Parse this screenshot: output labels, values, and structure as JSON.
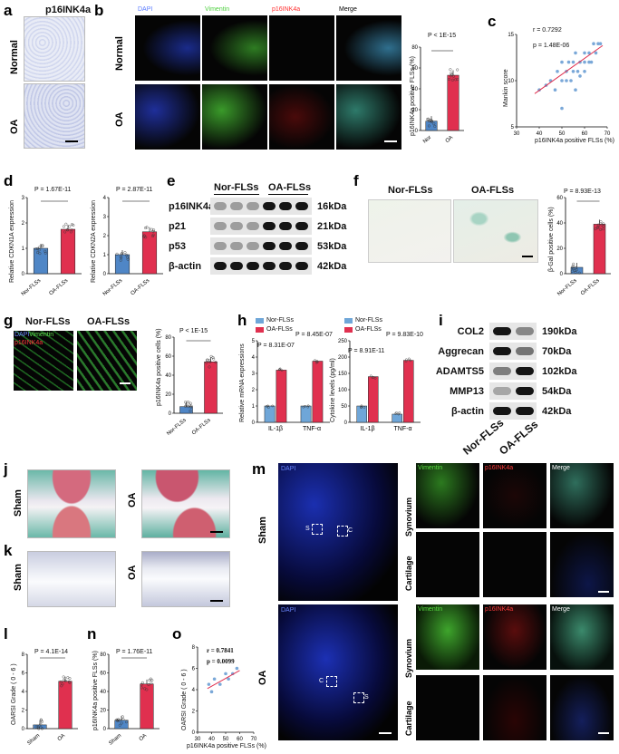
{
  "panels": {
    "a": {
      "label": "a",
      "title": "p16INK4a",
      "rows": [
        "Normal",
        "OA"
      ]
    },
    "b": {
      "label": "b",
      "channels": [
        "DAPI",
        "Vimentin",
        "p16INK4a",
        "Merge"
      ],
      "rows": [
        "Normal",
        "OA"
      ],
      "chart_title_p": "P < 1E-15",
      "ylabel": "p16INK4a positive FLSs (%)",
      "categories": [
        "Nor",
        "OA"
      ]
    },
    "c": {
      "label": "c",
      "r": "r  = 0.7292",
      "p": "p = 1.48E-06",
      "ylabel": "Mankin score",
      "xlabel": "p16INK4a positive FLSs (%)"
    },
    "d": {
      "label": "d",
      "p1": "P = 1.67E-11",
      "p2": "P = 2.87E-11",
      "ylabel1": "Relative CDKN1A expression",
      "ylabel2": "Relative CDKN2A expression",
      "categories": [
        "Nor-FLSs",
        "OA-FLSs"
      ]
    },
    "e": {
      "label": "e",
      "groups": [
        "Nor-FLSs",
        "OA-FLSs"
      ],
      "proteins": [
        "p16INK4a",
        "p21",
        "p53",
        "β-actin"
      ],
      "weights": [
        "16kDa",
        "21kDa",
        "53kDa",
        "42kDa"
      ]
    },
    "f": {
      "label": "f",
      "groups": [
        "Nor-FLSs",
        "OA-FLSs"
      ],
      "p": "P = 8.93E-13",
      "ylabel": "β-Gal positive cells (%)",
      "categories": [
        "Nor-FLSs",
        "OA-FLSs"
      ]
    },
    "g": {
      "label": "g",
      "groups": [
        "Nor-FLSs",
        "OA-FLSs"
      ],
      "legend": [
        "DAPI",
        "Vimentin",
        "p16INK4a"
      ],
      "p": "P < 1E-15",
      "ylabel": "p16INK4a positive cells (%)",
      "categories": [
        "Nor-FLSs",
        "OA-FLSs"
      ]
    },
    "h": {
      "label": "h",
      "legend": [
        "Nor-FLSs",
        "OA-FLSs"
      ],
      "p_il1": "P = 8.31E-07",
      "p_tnf": "P = 8.45E-07",
      "p_il1b": "P = 8.91E-11",
      "p_tnfb": "P = 9.83E-10",
      "ylabel1": "Relative mRNA expressions",
      "ylabel2": "Cytokine levels (pg/ml)",
      "categories": [
        "IL-1β",
        "TNF-α"
      ]
    },
    "i": {
      "label": "i",
      "proteins": [
        "COL2",
        "Aggrecan",
        "ADAMTS5",
        "MMP13",
        "β-actin"
      ],
      "weights": [
        "190kDa",
        "70kDa",
        "102kDa",
        "54kDa",
        "42kDa"
      ],
      "groups": [
        "Nor-FLSs",
        "OA-FLSs"
      ]
    },
    "j": {
      "label": "j",
      "rows": [
        "Sham",
        "OA"
      ]
    },
    "k": {
      "label": "k",
      "rows": [
        "Sham",
        "OA"
      ]
    },
    "l": {
      "label": "l",
      "p": "P = 4.1E-14",
      "ylabel": "OARSI Grade ( 0 - 6 )",
      "categories": [
        "Sham",
        "OA"
      ]
    },
    "m": {
      "label": "m",
      "dapi": "DAPI",
      "rows": [
        "Sham",
        "OA"
      ],
      "channels": [
        "Vimentin",
        "p16INK4a",
        "Merge"
      ],
      "tissues": [
        "Synovium",
        "Cartilage"
      ],
      "box_s": "S",
      "box_c": "C"
    },
    "n": {
      "label": "n",
      "p": "P = 1.76E-11",
      "ylabel": "p16INK4a positive FLSs (%)",
      "categories": [
        "Sham",
        "OA"
      ]
    },
    "o": {
      "label": "o",
      "r": "r  = 0.7841",
      "p": "p = 0.0099",
      "ylabel": "OARSI Grade ( 0 - 6 )",
      "xlabel": "p16INK4a positive FLSs (%)"
    }
  },
  "chart_data": [
    {
      "id": "b",
      "type": "bar",
      "categories": [
        "Nor",
        "OA"
      ],
      "values": [
        9,
        53
      ],
      "ylim": [
        0,
        80
      ],
      "yticks": [
        0,
        20,
        40,
        60,
        80
      ],
      "colors": [
        "#4f86c6",
        "#e0304f"
      ]
    },
    {
      "id": "c",
      "type": "scatter",
      "xlim": [
        30,
        70
      ],
      "ylim": [
        5,
        15
      ],
      "xticks": [
        30,
        40,
        50,
        60,
        70
      ],
      "yticks": [
        5,
        10,
        15
      ],
      "x": [
        40,
        43,
        45,
        47,
        48,
        50,
        50,
        52,
        52,
        53,
        54,
        55,
        55,
        56,
        57,
        58,
        58,
        60,
        60,
        62,
        63,
        64,
        65,
        66,
        67,
        50,
        56,
        60,
        62
      ],
      "y": [
        9,
        9.5,
        10,
        9,
        11,
        10,
        12,
        10,
        11,
        12,
        10,
        11,
        12,
        13,
        11,
        12,
        10.5,
        12,
        13,
        13,
        12,
        14,
        13,
        14,
        14,
        7,
        9,
        11,
        12
      ],
      "fit": [
        [
          38,
          8.6
        ],
        [
          68,
          13.8
        ]
      ]
    },
    {
      "id": "d1",
      "type": "bar",
      "categories": [
        "Nor-FLSs",
        "OA-FLSs"
      ],
      "values": [
        1.0,
        1.75
      ],
      "ylim": [
        0,
        3
      ],
      "yticks": [
        0,
        1,
        2,
        3
      ],
      "colors": [
        "#4f86c6",
        "#e0304f"
      ]
    },
    {
      "id": "d2",
      "type": "bar",
      "categories": [
        "Nor-FLSs",
        "OA-FLSs"
      ],
      "values": [
        1.0,
        2.2
      ],
      "ylim": [
        0,
        4
      ],
      "yticks": [
        0,
        1,
        2,
        3,
        4
      ],
      "colors": [
        "#4f86c6",
        "#e0304f"
      ]
    },
    {
      "id": "f",
      "type": "bar",
      "categories": [
        "Nor-FLSs",
        "OA-FLSs"
      ],
      "values": [
        5,
        39
      ],
      "ylim": [
        0,
        60
      ],
      "yticks": [
        0,
        20,
        40,
        60
      ],
      "colors": [
        "#4f86c6",
        "#e0304f"
      ]
    },
    {
      "id": "g",
      "type": "bar",
      "categories": [
        "Nor-FLSs",
        "OA-FLSs"
      ],
      "values": [
        7,
        54
      ],
      "ylim": [
        0,
        80
      ],
      "yticks": [
        0,
        20,
        40,
        60,
        80
      ],
      "colors": [
        "#4f86c6",
        "#e0304f"
      ]
    },
    {
      "id": "h1",
      "type": "bar",
      "categories": [
        "IL-1β",
        "TNF-α"
      ],
      "series": [
        {
          "name": "Nor-FLSs",
          "values": [
            1.0,
            1.0
          ]
        },
        {
          "name": "OA-FLSs",
          "values": [
            3.2,
            3.75
          ]
        }
      ],
      "ylim": [
        0,
        5
      ],
      "yticks": [
        0,
        1,
        2,
        3,
        4,
        5
      ]
    },
    {
      "id": "h2",
      "type": "bar",
      "categories": [
        "IL-1β",
        "TNF-α"
      ],
      "series": [
        {
          "name": "Nor-FLSs",
          "values": [
            50,
            25
          ]
        },
        {
          "name": "OA-FLSs",
          "values": [
            140,
            190
          ]
        }
      ],
      "ylim": [
        0,
        250
      ],
      "yticks": [
        0,
        50,
        100,
        150,
        200,
        250
      ]
    },
    {
      "id": "l",
      "type": "bar",
      "categories": [
        "Sham",
        "OA"
      ],
      "values": [
        0.4,
        5.1
      ],
      "ylim": [
        0,
        8
      ],
      "yticks": [
        0,
        2,
        4,
        6,
        8
      ],
      "colors": [
        "#4f86c6",
        "#e0304f"
      ]
    },
    {
      "id": "n",
      "type": "bar",
      "categories": [
        "Sham",
        "OA"
      ],
      "values": [
        9,
        48
      ],
      "ylim": [
        0,
        80
      ],
      "yticks": [
        0,
        20,
        40,
        60,
        80
      ],
      "colors": [
        "#4f86c6",
        "#e0304f"
      ]
    },
    {
      "id": "o",
      "type": "scatter",
      "xlim": [
        30,
        70
      ],
      "ylim": [
        0,
        8
      ],
      "xticks": [
        30,
        40,
        50,
        60,
        70
      ],
      "yticks": [
        0,
        2,
        4,
        6,
        8
      ],
      "x": [
        38,
        40,
        42,
        46,
        50,
        52,
        55,
        58
      ],
      "y": [
        4.5,
        3.8,
        5,
        4.5,
        5.5,
        5,
        5.5,
        6
      ],
      "fit": [
        [
          37,
          4.1
        ],
        [
          60,
          5.8
        ]
      ]
    }
  ]
}
